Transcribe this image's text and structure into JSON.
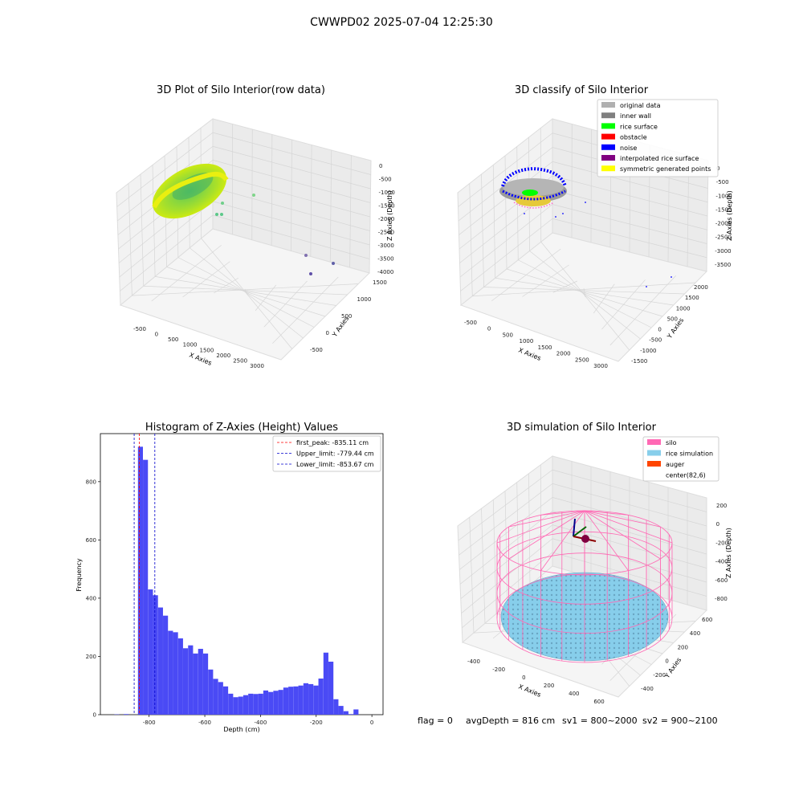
{
  "suptitle": "CWWPD02 2025-07-04 12:25:30",
  "footer": {
    "flag": "flag = 0",
    "avg_depth": "avgDepth = 816 cm",
    "sv1": "sv1 = 800~2000",
    "sv2": "sv2 = 900~2100"
  },
  "colors": {
    "hist_bar": "#4a4af5",
    "first_peak": "#ff0000",
    "limits": "#0000cc",
    "silo": "#ff69b4",
    "rice_sim": "#87ceeb",
    "auger": "#ff4500",
    "rice_surface": "#00ff00",
    "noise": "#0000ff",
    "symmetric": "#ffff00",
    "original": "#b0b0b0",
    "inner_wall": "#808080",
    "obstacle": "#ff0000",
    "interpolated": "#800080"
  },
  "chart_data": [
    {
      "type": "scatter",
      "title": "3D Plot of Silo Interior(row data)",
      "projection": "3d",
      "xlabel": "X Axies",
      "ylabel": "Y Axies",
      "zlabel": "Z Axies (Depth)",
      "x_ticks": [
        "-500",
        "0",
        "500",
        "1000",
        "1500",
        "2000",
        "2500",
        "3000"
      ],
      "y_ticks": [
        "-500",
        "0",
        "500",
        "1000",
        "1500"
      ],
      "z_ticks": [
        "0",
        "-500",
        "-1000",
        "-1500",
        "-2000",
        "-2500",
        "-3000",
        "-3500",
        "-4000"
      ],
      "colormap": "viridis-like (yellow-green to purple)"
    },
    {
      "type": "scatter",
      "title": "3D classify of Silo Interior",
      "projection": "3d",
      "xlabel": "X Axies",
      "ylabel": "Y Axies",
      "zlabel": "Z Axies (Depth)",
      "x_ticks": [
        "-500",
        "0",
        "500",
        "1000",
        "1500",
        "2000",
        "2500",
        "3000"
      ],
      "y_ticks": [
        "-1500",
        "-1000",
        "-500",
        "0",
        "500",
        "1000",
        "1500",
        "2000"
      ],
      "z_ticks": [
        "0",
        "-500",
        "-1000",
        "-1500",
        "-2000",
        "-2500",
        "-3000",
        "-3500"
      ],
      "legend": {
        "placement": "top-right",
        "entries": [
          {
            "label": "original data",
            "color": "#b0b0b0"
          },
          {
            "label": "inner wall",
            "color": "#808080"
          },
          {
            "label": "rice surface",
            "color": "#00ff00"
          },
          {
            "label": "obstacle",
            "color": "#ff0000"
          },
          {
            "label": "noise",
            "color": "#0000ff"
          },
          {
            "label": "interpolated rice surface",
            "color": "#800080"
          },
          {
            "label": "symmetric generated points",
            "color": "#ffff00"
          }
        ]
      }
    },
    {
      "type": "bar",
      "title": "Histogram of Z-Axies (Height) Values",
      "xlabel": "Depth (cm)",
      "ylabel": "Frequency",
      "xlim": [
        -975,
        40
      ],
      "ylim": [
        0,
        965
      ],
      "x_ticks": [
        -800,
        -600,
        -400,
        -200,
        0
      ],
      "y_ticks": [
        0,
        200,
        400,
        600,
        800
      ],
      "bin_width": 17.8,
      "bins": [
        {
          "x0": -925,
          "value": 1
        },
        {
          "x0": -891,
          "value": 2
        },
        {
          "x0": -840,
          "value": 920
        },
        {
          "x0": -822,
          "value": 875
        },
        {
          "x0": -804,
          "value": 430
        },
        {
          "x0": -786,
          "value": 410
        },
        {
          "x0": -768,
          "value": 368
        },
        {
          "x0": -750,
          "value": 340
        },
        {
          "x0": -732,
          "value": 288
        },
        {
          "x0": -714,
          "value": 283
        },
        {
          "x0": -696,
          "value": 262
        },
        {
          "x0": -678,
          "value": 228
        },
        {
          "x0": -660,
          "value": 238
        },
        {
          "x0": -642,
          "value": 210
        },
        {
          "x0": -624,
          "value": 226
        },
        {
          "x0": -606,
          "value": 210
        },
        {
          "x0": -588,
          "value": 155
        },
        {
          "x0": -570,
          "value": 123
        },
        {
          "x0": -552,
          "value": 112
        },
        {
          "x0": -534,
          "value": 97
        },
        {
          "x0": -516,
          "value": 72
        },
        {
          "x0": -498,
          "value": 60
        },
        {
          "x0": -480,
          "value": 62
        },
        {
          "x0": -462,
          "value": 67
        },
        {
          "x0": -444,
          "value": 72
        },
        {
          "x0": -426,
          "value": 71
        },
        {
          "x0": -408,
          "value": 72
        },
        {
          "x0": -390,
          "value": 83
        },
        {
          "x0": -372,
          "value": 78
        },
        {
          "x0": -354,
          "value": 82
        },
        {
          "x0": -336,
          "value": 85
        },
        {
          "x0": -318,
          "value": 93
        },
        {
          "x0": -300,
          "value": 96
        },
        {
          "x0": -282,
          "value": 97
        },
        {
          "x0": -264,
          "value": 100
        },
        {
          "x0": -246,
          "value": 108
        },
        {
          "x0": -228,
          "value": 105
        },
        {
          "x0": -210,
          "value": 100
        },
        {
          "x0": -192,
          "value": 124
        },
        {
          "x0": -174,
          "value": 213
        },
        {
          "x0": -156,
          "value": 182
        },
        {
          "x0": -138,
          "value": 53
        },
        {
          "x0": -120,
          "value": 30
        },
        {
          "x0": -102,
          "value": 12
        },
        {
          "x0": -84,
          "value": 2
        },
        {
          "x0": -66,
          "value": 18
        }
      ],
      "vlines": [
        {
          "x": -835.11,
          "label": "first_peak: -835.11 cm",
          "color": "#ff0000"
        },
        {
          "x": -779.44,
          "label": "Upper_limit: -779.44 cm",
          "color": "#0000cc"
        },
        {
          "x": -853.67,
          "label": "Lower_limit: -853.67 cm",
          "color": "#0000cc"
        }
      ],
      "legend": {
        "placement": "top-right"
      }
    },
    {
      "type": "scatter",
      "title": "3D simulation of Silo Interior",
      "projection": "3d",
      "xlabel": "X Axies",
      "ylabel": "Y Axies",
      "zlabel": "Z Axies (Depth)",
      "x_ticks": [
        "-400",
        "-200",
        "0",
        "200",
        "400",
        "600"
      ],
      "y_ticks": [
        "-400",
        "-200",
        "0",
        "200",
        "400",
        "600"
      ],
      "z_ticks": [
        "200",
        "0",
        "-200",
        "-400",
        "-600",
        "-800"
      ],
      "legend": {
        "placement": "top-right",
        "entries": [
          {
            "label": "silo",
            "color": "#ff69b4"
          },
          {
            "label": "rice simulation",
            "color": "#87ceeb"
          },
          {
            "label": "auger",
            "color": "#ff4500"
          },
          {
            "label": "center(82,6)",
            "color": ""
          }
        ]
      }
    }
  ]
}
